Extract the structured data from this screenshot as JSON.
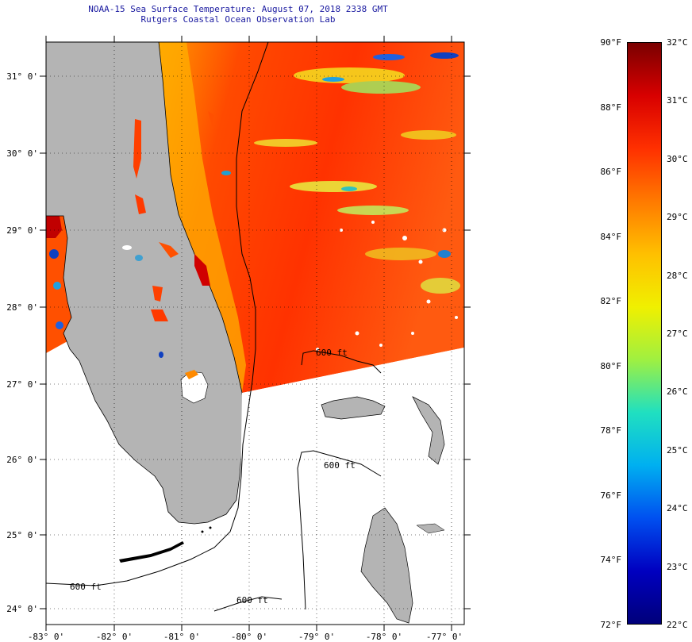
{
  "title": {
    "line1": "NOAA-15 Sea Surface Temperature:  August 07, 2018 2338 GMT",
    "line2": "Rutgers Coastal Ocean Observation Lab"
  },
  "map": {
    "lon_ticks": [
      "-83° 0'",
      "-82° 0'",
      "-81° 0'",
      "-80° 0'",
      "-79° 0'",
      "-78° 0'",
      "-77° 0'"
    ],
    "lat_ticks": [
      "31° 0'",
      "30° 0'",
      "29° 0'",
      "28° 0'",
      "27° 0'",
      "26° 0'",
      "25° 0'",
      "24° 0'"
    ],
    "contour_labels": [
      "600 ft",
      "600 ft",
      "600 ft",
      "600 ft"
    ],
    "colors": {
      "land": "#b4b4b4",
      "no_data": "#ffffff"
    }
  },
  "colorbar": {
    "fahrenheit": [
      "90°F",
      "88°F",
      "86°F",
      "84°F",
      "82°F",
      "80°F",
      "78°F",
      "76°F",
      "74°F",
      "72°F"
    ],
    "celsius": [
      "32°C",
      "31°C",
      "30°C",
      "29°C",
      "28°C",
      "27°C",
      "26°C",
      "25°C",
      "24°C",
      "23°C",
      "22°C"
    ],
    "colors": [
      "#7a0000",
      "#d80000",
      "#ff3000",
      "#ff7a00",
      "#ffc000",
      "#f0f000",
      "#a0f040",
      "#20e0c0",
      "#00b0f0",
      "#0050f0",
      "#0000c0",
      "#00007a"
    ]
  }
}
